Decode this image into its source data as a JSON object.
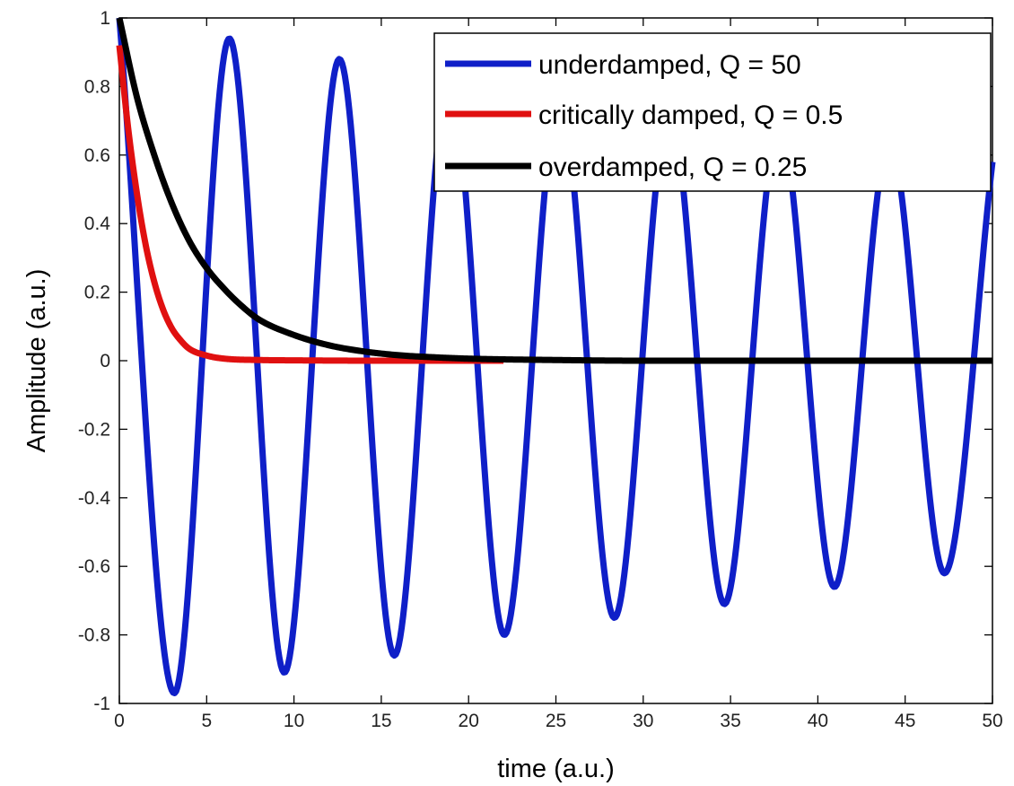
{
  "chart_data": {
    "type": "line",
    "title": "",
    "xlabel": "time (a.u.)",
    "ylabel": "Amplitude (a.u.)",
    "xlim": [
      0,
      50
    ],
    "ylim": [
      -1,
      1
    ],
    "xticks": [
      0,
      5,
      10,
      15,
      20,
      25,
      30,
      35,
      40,
      45,
      50
    ],
    "yticks": [
      -1,
      -0.8,
      -0.6,
      -0.4,
      -0.2,
      0,
      0.2,
      0.4,
      0.6,
      0.8,
      1
    ],
    "xtick_labels": [
      "0",
      "5",
      "10",
      "15",
      "20",
      "25",
      "30",
      "35",
      "40",
      "45",
      "50"
    ],
    "ytick_labels": [
      "-1",
      "-0.8",
      "-0.6",
      "-0.4",
      "-0.2",
      "0",
      "0.2",
      "0.4",
      "0.6",
      "0.8",
      "1"
    ],
    "grid": false,
    "legend_position": "top-right",
    "series": [
      {
        "name": "underdamped, Q = 50",
        "color": "#0f1fc8",
        "x": [
          0,
          3.15,
          6.3,
          9.45,
          12.6,
          15.75,
          18.9,
          22.05,
          25.2,
          28.35,
          31.5,
          34.65,
          37.8,
          40.95,
          44.1,
          47.25,
          50
        ],
        "y": [
          1,
          -0.97,
          0.94,
          -0.91,
          0.88,
          -0.86,
          0.83,
          -0.8,
          0.77,
          -0.75,
          0.73,
          -0.71,
          0.69,
          -0.66,
          0.64,
          -0.62,
          0.58
        ]
      },
      {
        "name": "critically damped, Q = 0.5",
        "color": "#e01010",
        "x": [
          0,
          0.5,
          1,
          1.5,
          2,
          2.5,
          3,
          3.5,
          4,
          5,
          6,
          8,
          10,
          15,
          22
        ],
        "y": [
          0.92,
          0.68,
          0.49,
          0.34,
          0.23,
          0.15,
          0.095,
          0.06,
          0.035,
          0.015,
          0.006,
          0.002,
          0.001,
          0,
          0
        ]
      },
      {
        "name": "overdamped, Q = 0.25",
        "color": "#000000",
        "x": [
          0,
          1,
          2,
          3,
          4,
          5,
          6,
          7,
          8,
          10,
          12,
          14,
          16,
          18,
          20,
          25,
          30,
          40,
          50
        ],
        "y": [
          1,
          0.77,
          0.6,
          0.46,
          0.35,
          0.27,
          0.21,
          0.16,
          0.12,
          0.075,
          0.045,
          0.027,
          0.016,
          0.01,
          0.006,
          0.002,
          0,
          0,
          0
        ]
      }
    ]
  }
}
